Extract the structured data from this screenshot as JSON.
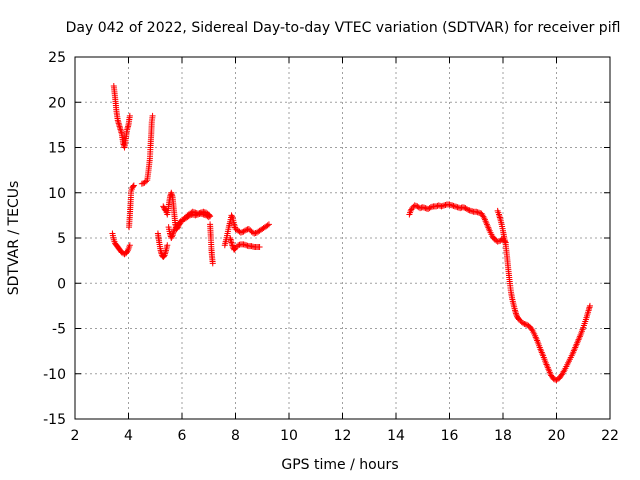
{
  "chart_data": {
    "type": "scatter",
    "title": "Day 042 of 2022, Sidereal Day-to-day VTEC variation (SDTVAR) for receiver pifl",
    "xlabel": "GPS time / hours",
    "ylabel": "SDTVAR / TECUs",
    "xlim": [
      2,
      22
    ],
    "ylim": [
      -15,
      25
    ],
    "x_ticks": [
      2,
      4,
      6,
      8,
      10,
      12,
      14,
      16,
      18,
      20,
      22
    ],
    "y_ticks": [
      -15,
      -10,
      -5,
      0,
      5,
      10,
      15,
      20,
      25
    ],
    "x_tick_labels": [
      "2",
      "4",
      "6",
      "8",
      "10",
      "12",
      "14",
      "16",
      "18",
      "20",
      "22"
    ],
    "y_tick_labels": [
      "-15",
      "-10",
      "-5",
      "0",
      "5",
      "10",
      "15",
      "20",
      "25"
    ],
    "grid": true,
    "marker": "plus",
    "series": [
      {
        "name": "SDTVAR",
        "color": "#ff0000",
        "segments": [
          [
            [
              3.45,
              21.8
            ],
            [
              3.5,
              20.5
            ],
            [
              3.55,
              19
            ],
            [
              3.6,
              18
            ],
            [
              3.65,
              17.5
            ],
            [
              3.7,
              17
            ],
            [
              3.75,
              16.5
            ],
            [
              3.8,
              15.5
            ],
            [
              3.85,
              15
            ],
            [
              3.9,
              16
            ],
            [
              3.95,
              17
            ],
            [
              4.0,
              17.5
            ],
            [
              4.05,
              18.5
            ]
          ],
          [
            [
              3.4,
              5.5
            ],
            [
              3.45,
              4.8
            ],
            [
              3.5,
              4.4
            ],
            [
              3.55,
              4.2
            ],
            [
              3.6,
              4.0
            ],
            [
              3.65,
              3.8
            ],
            [
              3.7,
              3.6
            ],
            [
              3.75,
              3.4
            ],
            [
              3.8,
              3.3
            ],
            [
              3.85,
              3.2
            ],
            [
              3.9,
              3.3
            ],
            [
              3.95,
              3.5
            ],
            [
              4.0,
              3.8
            ],
            [
              4.05,
              4.2
            ]
          ],
          [
            [
              4.02,
              6.2
            ],
            [
              4.05,
              7.5
            ],
            [
              4.08,
              9
            ],
            [
              4.1,
              10.2
            ],
            [
              4.15,
              10.6
            ],
            [
              4.2,
              10.8
            ]
          ],
          [
            [
              4.5,
              11
            ],
            [
              4.6,
              11.1
            ],
            [
              4.7,
              11.4
            ],
            [
              4.75,
              12.5
            ],
            [
              4.8,
              13.8
            ],
            [
              4.82,
              15
            ],
            [
              4.85,
              16.5
            ],
            [
              4.87,
              17.8
            ],
            [
              4.9,
              18.5
            ]
          ],
          [
            [
              5.1,
              5.5
            ],
            [
              5.15,
              4.5
            ],
            [
              5.2,
              3.6
            ],
            [
              5.25,
              3.1
            ],
            [
              5.3,
              2.9
            ],
            [
              5.35,
              3.1
            ],
            [
              5.4,
              3.6
            ],
            [
              5.45,
              4.2
            ]
          ],
          [
            [
              5.3,
              8.5
            ],
            [
              5.35,
              8.2
            ],
            [
              5.4,
              8
            ],
            [
              5.45,
              7.6
            ],
            [
              5.5,
              8.5
            ],
            [
              5.55,
              9.5
            ],
            [
              5.6,
              10
            ],
            [
              5.65,
              9.5
            ],
            [
              5.7,
              8
            ],
            [
              5.75,
              6.5
            ],
            [
              5.8,
              6
            ],
            [
              5.85,
              6.2
            ],
            [
              5.9,
              6.5
            ],
            [
              6.0,
              6.9
            ],
            [
              6.1,
              7.2
            ],
            [
              6.2,
              7.5
            ],
            [
              6.3,
              7.7
            ],
            [
              6.4,
              7.9
            ],
            [
              6.5,
              7.8
            ],
            [
              6.6,
              7.7
            ],
            [
              6.7,
              7.8
            ],
            [
              6.8,
              7.9
            ],
            [
              6.9,
              7.8
            ],
            [
              7.0,
              7.6
            ],
            [
              7.05,
              7.4
            ]
          ],
          [
            [
              5.5,
              6.2
            ],
            [
              5.55,
              5.5
            ],
            [
              5.6,
              5
            ],
            [
              5.65,
              5.3
            ],
            [
              5.7,
              5.8
            ],
            [
              5.8,
              6.3
            ],
            [
              5.9,
              6.7
            ],
            [
              6.0,
              7.0
            ],
            [
              6.1,
              7.1
            ],
            [
              6.2,
              7.3
            ],
            [
              6.3,
              7.5
            ],
            [
              6.4,
              7.6
            ],
            [
              6.5,
              7.5
            ],
            [
              6.6,
              7.6
            ],
            [
              6.7,
              7.7
            ],
            [
              6.8,
              7.6
            ],
            [
              6.9,
              7.5
            ],
            [
              7.0,
              7.3
            ]
          ],
          [
            [
              7.05,
              6.5
            ],
            [
              7.08,
              5
            ],
            [
              7.1,
              3.8
            ],
            [
              7.12,
              3
            ],
            [
              7.15,
              2.2
            ]
          ],
          [
            [
              7.6,
              4.2
            ],
            [
              7.65,
              4.8
            ],
            [
              7.7,
              5.5
            ],
            [
              7.75,
              6.2
            ],
            [
              7.8,
              6.8
            ],
            [
              7.85,
              7.5
            ],
            [
              7.9,
              7.2
            ],
            [
              7.95,
              6.5
            ],
            [
              8.0,
              6
            ],
            [
              8.1,
              5.8
            ],
            [
              8.2,
              5.6
            ],
            [
              8.3,
              5.7
            ],
            [
              8.4,
              5.9
            ],
            [
              8.5,
              6.0
            ],
            [
              8.6,
              5.7
            ],
            [
              8.7,
              5.5
            ],
            [
              8.8,
              5.6
            ],
            [
              8.9,
              5.8
            ],
            [
              9.0,
              6.0
            ],
            [
              9.1,
              6.2
            ],
            [
              9.2,
              6.4
            ],
            [
              9.25,
              6.5
            ]
          ],
          [
            [
              7.8,
              5
            ],
            [
              7.85,
              4.5
            ],
            [
              7.9,
              4.0
            ],
            [
              7.95,
              3.7
            ],
            [
              8.0,
              3.9
            ],
            [
              8.1,
              4.2
            ],
            [
              8.2,
              4.3
            ],
            [
              8.3,
              4.3
            ],
            [
              8.4,
              4.2
            ],
            [
              8.5,
              4.1
            ],
            [
              8.6,
              4.1
            ],
            [
              8.7,
              4.0
            ],
            [
              8.8,
              4.0
            ],
            [
              8.9,
              4.0
            ]
          ],
          [
            [
              14.5,
              7.6
            ],
            [
              14.55,
              8
            ],
            [
              14.6,
              8.3
            ],
            [
              14.7,
              8.6
            ],
            [
              14.8,
              8.5
            ],
            [
              14.9,
              8.3
            ],
            [
              15.0,
              8.4
            ],
            [
              15.1,
              8.3
            ],
            [
              15.2,
              8.2
            ],
            [
              15.3,
              8.4
            ],
            [
              15.4,
              8.5
            ],
            [
              15.5,
              8.5
            ],
            [
              15.6,
              8.6
            ],
            [
              15.7,
              8.5
            ],
            [
              15.8,
              8.6
            ],
            [
              15.9,
              8.7
            ],
            [
              16.0,
              8.7
            ],
            [
              16.1,
              8.6
            ],
            [
              16.2,
              8.5
            ],
            [
              16.3,
              8.4
            ],
            [
              16.4,
              8.3
            ],
            [
              16.5,
              8.4
            ],
            [
              16.6,
              8.3
            ],
            [
              16.7,
              8.1
            ],
            [
              16.8,
              8.0
            ],
            [
              16.9,
              7.9
            ],
            [
              17.0,
              7.9
            ],
            [
              17.1,
              7.8
            ],
            [
              17.2,
              7.7
            ],
            [
              17.3,
              7.2
            ],
            [
              17.4,
              6.5
            ],
            [
              17.5,
              5.8
            ],
            [
              17.6,
              5.2
            ],
            [
              17.7,
              4.8
            ],
            [
              17.8,
              4.6
            ],
            [
              17.9,
              4.7
            ],
            [
              18.0,
              4.9
            ],
            [
              18.1,
              4.5
            ]
          ],
          [
            [
              17.8,
              8
            ],
            [
              17.85,
              7.6
            ],
            [
              17.9,
              7.1
            ],
            [
              17.95,
              6.5
            ],
            [
              18.0,
              5.8
            ],
            [
              18.05,
              5.0
            ],
            [
              18.1,
              4.3
            ],
            [
              18.15,
              3.0
            ],
            [
              18.2,
              1.5
            ],
            [
              18.25,
              0.2
            ],
            [
              18.3,
              -1.0
            ],
            [
              18.35,
              -1.8
            ],
            [
              18.4,
              -2.4
            ],
            [
              18.45,
              -3.0
            ],
            [
              18.5,
              -3.5
            ],
            [
              18.55,
              -3.8
            ],
            [
              18.6,
              -4.0
            ],
            [
              18.7,
              -4.3
            ],
            [
              18.8,
              -4.5
            ],
            [
              18.9,
              -4.6
            ],
            [
              19.0,
              -4.8
            ],
            [
              19.1,
              -5.2
            ],
            [
              19.2,
              -5.8
            ],
            [
              19.3,
              -6.5
            ],
            [
              19.4,
              -7.3
            ],
            [
              19.5,
              -8.0
            ],
            [
              19.6,
              -8.8
            ],
            [
              19.7,
              -9.5
            ],
            [
              19.8,
              -10.2
            ],
            [
              19.9,
              -10.6
            ],
            [
              20.0,
              -10.7
            ],
            [
              20.1,
              -10.5
            ],
            [
              20.2,
              -10.1
            ],
            [
              20.3,
              -9.6
            ],
            [
              20.4,
              -9.0
            ],
            [
              20.5,
              -8.4
            ],
            [
              20.6,
              -7.8
            ],
            [
              20.7,
              -7.1
            ],
            [
              20.8,
              -6.4
            ],
            [
              20.9,
              -5.7
            ],
            [
              21.0,
              -4.9
            ],
            [
              21.1,
              -4.0
            ],
            [
              21.2,
              -3.0
            ],
            [
              21.25,
              -2.5
            ]
          ]
        ]
      }
    ]
  }
}
